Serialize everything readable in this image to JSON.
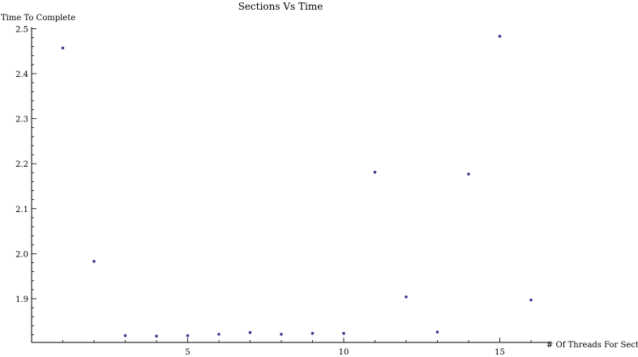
{
  "chart_data": {
    "type": "scatter",
    "title": "Sections Vs Time",
    "xlabel": "# Of Threads For Sections",
    "ylabel": "Time To Complete",
    "xlim": [
      0,
      16.5
    ],
    "ylim": [
      1.81,
      2.5
    ],
    "x_ticks": [
      5,
      10,
      15
    ],
    "y_ticks": [
      1.9,
      2.0,
      2.1,
      2.2,
      2.3,
      2.4,
      2.5
    ],
    "x_tick_labels": [
      "5",
      "10",
      "15"
    ],
    "y_tick_labels": [
      "1.9",
      "2.0",
      "2.1",
      "2.2",
      "2.3",
      "2.4",
      "2.5"
    ],
    "grid": false,
    "marker_color": "#3b3b8f",
    "points": [
      {
        "x": 1,
        "y": 2.457
      },
      {
        "x": 2,
        "y": 1.983
      },
      {
        "x": 3,
        "y": 1.818
      },
      {
        "x": 4,
        "y": 1.817
      },
      {
        "x": 5,
        "y": 1.818
      },
      {
        "x": 6,
        "y": 1.821
      },
      {
        "x": 7,
        "y": 1.825
      },
      {
        "x": 8,
        "y": 1.821
      },
      {
        "x": 9,
        "y": 1.823
      },
      {
        "x": 10,
        "y": 1.823
      },
      {
        "x": 11,
        "y": 2.181
      },
      {
        "x": 12,
        "y": 1.904
      },
      {
        "x": 13,
        "y": 1.826
      },
      {
        "x": 14,
        "y": 2.177
      },
      {
        "x": 15,
        "y": 2.483
      },
      {
        "x": 16,
        "y": 1.897
      }
    ]
  }
}
